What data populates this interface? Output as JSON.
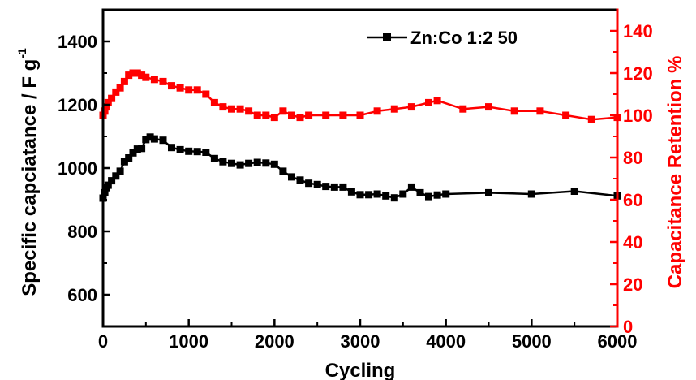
{
  "chart_data": {
    "type": "line",
    "xlabel": "Cycling",
    "ylabel": "Specific capciatance / F g",
    "ylabel_superscript": "-1",
    "y2label": "Capacitance Retention %",
    "xlim": [
      0,
      6000
    ],
    "ylim": [
      500,
      1500
    ],
    "y2lim": [
      0,
      150
    ],
    "x_ticks": [
      "0",
      "1000",
      "2000",
      "3000",
      "4000",
      "5000",
      "6000"
    ],
    "y_ticks": [
      "600",
      "800",
      "1000",
      "1200",
      "1400"
    ],
    "y2_ticks": [
      "0",
      "20",
      "40",
      "60",
      "80",
      "100",
      "120",
      "140"
    ],
    "legend_position": "top-right",
    "grid": false,
    "colors": {
      "capacitance": "#000000",
      "retention": "#ff0000"
    },
    "series": [
      {
        "name": "Zn:Co 1:2 50",
        "axis": "left",
        "marker": "square",
        "x": [
          0,
          20,
          40,
          60,
          100,
          150,
          200,
          250,
          300,
          350,
          400,
          450,
          500,
          550,
          600,
          700,
          800,
          900,
          1000,
          1100,
          1200,
          1300,
          1400,
          1500,
          1600,
          1700,
          1800,
          1900,
          2000,
          2100,
          2200,
          2300,
          2400,
          2500,
          2600,
          2700,
          2800,
          2900,
          3000,
          3100,
          3200,
          3300,
          3400,
          3500,
          3600,
          3700,
          3800,
          3900,
          4000,
          4500,
          5000,
          5500,
          6000
        ],
        "y": [
          905,
          922,
          938,
          946,
          960,
          975,
          990,
          1020,
          1032,
          1048,
          1060,
          1062,
          1090,
          1098,
          1092,
          1088,
          1065,
          1058,
          1053,
          1052,
          1050,
          1030,
          1020,
          1015,
          1010,
          1015,
          1018,
          1016,
          1012,
          990,
          972,
          962,
          952,
          948,
          942,
          940,
          940,
          925,
          916,
          916,
          918,
          912,
          906,
          918,
          940,
          922,
          910,
          915,
          918,
          922,
          918,
          927,
          912
        ]
      },
      {
        "name": "",
        "axis": "right",
        "marker": "square",
        "x": [
          0,
          20,
          40,
          60,
          100,
          150,
          200,
          250,
          300,
          350,
          400,
          450,
          500,
          600,
          700,
          800,
          900,
          1000,
          1100,
          1200,
          1300,
          1400,
          1500,
          1600,
          1700,
          1800,
          1900,
          2000,
          2100,
          2200,
          2300,
          2400,
          2600,
          2800,
          3000,
          3200,
          3400,
          3600,
          3800,
          3900,
          4200,
          4500,
          4800,
          5100,
          5400,
          5700,
          6000
        ],
        "y": [
          100,
          102,
          104,
          106,
          108,
          111,
          113,
          116,
          119,
          120,
          120,
          119,
          118,
          117,
          116,
          114,
          113,
          112,
          112,
          110,
          106,
          104,
          103,
          103,
          102,
          100,
          100,
          99,
          102,
          100,
          99,
          100,
          100,
          100,
          100,
          102,
          103,
          104,
          106,
          107,
          103,
          104,
          102,
          102,
          100,
          98,
          99
        ]
      }
    ]
  }
}
